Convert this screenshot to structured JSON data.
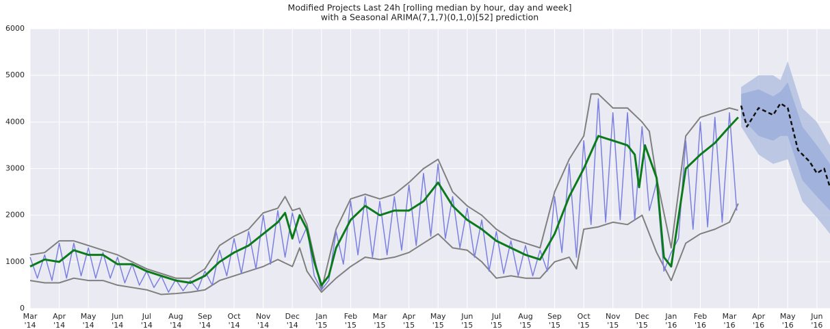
{
  "chart_data": {
    "type": "line",
    "title": "Modified Projects Last 24h [rolling median by hour, day and week]",
    "subtitle": "with a Seasonal ARIMA(7,1,7)(0,1,0)[52] prediction",
    "xlim": [
      0,
      27.45
    ],
    "ylim": [
      0,
      6000
    ],
    "yticks": [
      0,
      1000,
      2000,
      3000,
      4000,
      5000,
      6000
    ],
    "xticks": [
      {
        "value": 0,
        "label": "Mar\n'14"
      },
      {
        "value": 1,
        "label": "Apr\n'14"
      },
      {
        "value": 2,
        "label": "May\n'14"
      },
      {
        "value": 3,
        "label": "Jun\n'14"
      },
      {
        "value": 4,
        "label": "Jul\n'14"
      },
      {
        "value": 5,
        "label": "Aug\n'14"
      },
      {
        "value": 6,
        "label": "Sep\n'14"
      },
      {
        "value": 7,
        "label": "Oct\n'14"
      },
      {
        "value": 8,
        "label": "Nov\n'14"
      },
      {
        "value": 9,
        "label": "Dec\n'14"
      },
      {
        "value": 10,
        "label": "Jan\n'15"
      },
      {
        "value": 11,
        "label": "Feb\n'15"
      },
      {
        "value": 12,
        "label": "Mar\n'15"
      },
      {
        "value": 13,
        "label": "Apr\n'15"
      },
      {
        "value": 14,
        "label": "May\n'15"
      },
      {
        "value": 15,
        "label": "Jun\n'15"
      },
      {
        "value": 16,
        "label": "Jul\n'15"
      },
      {
        "value": 17,
        "label": "Aug\n'15"
      },
      {
        "value": 18,
        "label": "Sep\n'15"
      },
      {
        "value": 19,
        "label": "Oct\n'15"
      },
      {
        "value": 20,
        "label": "Nov\n'15"
      },
      {
        "value": 21,
        "label": "Dec\n'15"
      },
      {
        "value": 22,
        "label": "Jan\n'16"
      },
      {
        "value": 23,
        "label": "Feb\n'16"
      },
      {
        "value": 24,
        "label": "Mar\n'16"
      },
      {
        "value": 25,
        "label": "Apr\n'16"
      },
      {
        "value": 26,
        "label": "May\n'16"
      },
      {
        "value": 27,
        "label": "Jun\n'16"
      }
    ],
    "grid": true,
    "bands": [
      {
        "color": "#b4c1e2",
        "x": [
          24.4,
          25,
          25.5,
          25.75,
          26,
          26.5,
          27,
          27.45
        ],
        "upper": [
          4750,
          5000,
          5000,
          4900,
          5300,
          4300,
          4000,
          3500
        ],
        "lower": [
          3900,
          3300,
          3100,
          3150,
          3200,
          2300,
          1950,
          1600
        ]
      },
      {
        "color": "#9cafdb",
        "x": [
          24.4,
          25,
          25.5,
          25.75,
          26,
          26.5,
          27,
          27.45
        ],
        "upper": [
          4600,
          4700,
          4550,
          4650,
          4850,
          3900,
          3500,
          3100
        ],
        "lower": [
          4100,
          3700,
          3600,
          3700,
          3700,
          2750,
          2400,
          2100
        ]
      }
    ],
    "series": [
      {
        "color": "#7f7f7f",
        "width": 2,
        "x": [
          0,
          0.5,
          1,
          1.5,
          2,
          2.5,
          3,
          3.5,
          4,
          4.5,
          5,
          5.5,
          6,
          6.5,
          7,
          7.5,
          8,
          8.5,
          8.75,
          9,
          9.25,
          9.5,
          10,
          10.5,
          11,
          11.5,
          12,
          12.5,
          13,
          13.5,
          14,
          14.5,
          15,
          15.5,
          16,
          16.5,
          17,
          17.5,
          18,
          18.5,
          19,
          19.25,
          19.5,
          20,
          20.5,
          21,
          21.25,
          21.5,
          22,
          22.5,
          23,
          23.5,
          24,
          24.3
        ],
        "values": [
          1150,
          1200,
          1450,
          1450,
          1350,
          1250,
          1150,
          1000,
          850,
          750,
          650,
          650,
          850,
          1350,
          1550,
          1700,
          2050,
          2150,
          2400,
          2100,
          2150,
          1800,
          400,
          1700,
          2350,
          2450,
          2350,
          2450,
          2700,
          3000,
          3200,
          2500,
          2200,
          2000,
          1700,
          1500,
          1400,
          1300,
          2500,
          3200,
          3700,
          4600,
          4600,
          4300,
          4300,
          4000,
          3800,
          2800,
          1300,
          3700,
          4100,
          4200,
          4300,
          4250
        ]
      },
      {
        "color": "#7f7f7f",
        "width": 2,
        "x": [
          0,
          0.5,
          1,
          1.5,
          2,
          2.5,
          3,
          3.5,
          4,
          4.5,
          5,
          5.5,
          6,
          6.5,
          7,
          7.5,
          8,
          8.5,
          9,
          9.25,
          9.5,
          10,
          10.5,
          11,
          11.5,
          12,
          12.5,
          13,
          13.5,
          14,
          14.5,
          15,
          15.5,
          16,
          16.5,
          17,
          17.5,
          18,
          18.5,
          18.75,
          19,
          19.5,
          20,
          20.5,
          21,
          21.5,
          22,
          22.5,
          23,
          23.5,
          24,
          24.3
        ],
        "values": [
          600,
          550,
          550,
          650,
          600,
          600,
          500,
          450,
          400,
          300,
          320,
          350,
          400,
          600,
          700,
          800,
          900,
          1050,
          900,
          1300,
          800,
          350,
          650,
          900,
          1100,
          1050,
          1100,
          1200,
          1400,
          1600,
          1300,
          1250,
          1000,
          650,
          700,
          650,
          650,
          1000,
          1100,
          850,
          1700,
          1750,
          1850,
          1800,
          2000,
          1200,
          600,
          1400,
          1600,
          1700,
          1850,
          2250
        ]
      },
      {
        "color": "#7b7fe0",
        "width": 1.5,
        "x": [
          0,
          0.25,
          0.5,
          0.75,
          1,
          1.25,
          1.5,
          1.75,
          2,
          2.25,
          2.5,
          2.75,
          3,
          3.25,
          3.5,
          3.75,
          4,
          4.25,
          4.5,
          4.75,
          5,
          5.25,
          5.5,
          5.75,
          6,
          6.25,
          6.5,
          6.75,
          7,
          7.25,
          7.5,
          7.75,
          8,
          8.25,
          8.5,
          8.75,
          9,
          9.25,
          9.5,
          9.75,
          10,
          10.25,
          10.5,
          10.75,
          11,
          11.25,
          11.5,
          11.75,
          12,
          12.25,
          12.5,
          12.75,
          13,
          13.25,
          13.5,
          13.75,
          14,
          14.25,
          14.5,
          14.75,
          15,
          15.25,
          15.5,
          15.75,
          16,
          16.25,
          16.5,
          16.75,
          17,
          17.25,
          17.5,
          17.75,
          18,
          18.25,
          18.5,
          18.75,
          19,
          19.25,
          19.5,
          19.75,
          20,
          20.25,
          20.5,
          20.75,
          21,
          21.25,
          21.5,
          21.75,
          22,
          22.25,
          22.5,
          22.75,
          23,
          23.25,
          23.5,
          23.75,
          24,
          24.25
        ],
        "values": [
          1100,
          650,
          1150,
          600,
          1400,
          650,
          1400,
          700,
          1300,
          650,
          1200,
          650,
          1100,
          550,
          950,
          500,
          800,
          450,
          700,
          350,
          620,
          380,
          600,
          400,
          800,
          500,
          1250,
          700,
          1500,
          750,
          1650,
          850,
          2000,
          950,
          2100,
          1100,
          2050,
          1400,
          1750,
          700,
          400,
          600,
          1650,
          950,
          2300,
          1150,
          2400,
          1100,
          2300,
          1150,
          2400,
          1250,
          2650,
          1350,
          2900,
          1550,
          3100,
          1500,
          2400,
          1300,
          2150,
          1100,
          1900,
          800,
          1650,
          750,
          1450,
          700,
          1350,
          700,
          1250,
          800,
          2400,
          1200,
          3100,
          1100,
          3600,
          1800,
          4500,
          1850,
          4200,
          1900,
          4200,
          1900,
          3900,
          2100,
          2700,
          800,
          1200,
          1500,
          3600,
          1700,
          4000,
          1750,
          4100,
          1850,
          4200,
          2100
        ]
      },
      {
        "color": "#0b7a1b",
        "width": 3,
        "x": [
          0,
          0.5,
          1,
          1.5,
          2,
          2.5,
          3,
          3.5,
          4,
          4.5,
          5,
          5.5,
          6,
          6.5,
          7,
          7.5,
          8,
          8.5,
          8.75,
          9,
          9.25,
          9.5,
          9.75,
          10,
          10.25,
          10.5,
          11,
          11.5,
          12,
          12.5,
          13,
          13.5,
          14,
          14.5,
          15,
          15.5,
          16,
          16.5,
          17,
          17.5,
          18,
          18.5,
          19,
          19.5,
          20,
          20.5,
          20.75,
          20.9,
          21.1,
          21.5,
          21.75,
          22,
          22.5,
          23,
          23.5,
          24,
          24.3
        ],
        "values": [
          900,
          1050,
          1000,
          1250,
          1150,
          1150,
          950,
          950,
          800,
          700,
          600,
          550,
          700,
          1000,
          1200,
          1350,
          1600,
          1850,
          2050,
          1500,
          2000,
          1700,
          1000,
          500,
          700,
          1300,
          1900,
          2200,
          2000,
          2100,
          2100,
          2300,
          2700,
          2200,
          1900,
          1700,
          1450,
          1300,
          1150,
          1050,
          1600,
          2400,
          3000,
          3700,
          3600,
          3500,
          3300,
          2600,
          3500,
          2800,
          1100,
          900,
          3000,
          3300,
          3550,
          3900,
          4100
        ]
      },
      {
        "color": "#111111",
        "width": 2.5,
        "dashed": true,
        "x": [
          24.4,
          24.6,
          25,
          25.5,
          25.75,
          26,
          26.35,
          26.75,
          27,
          27.25,
          27.45
        ],
        "values": [
          4350,
          3900,
          4300,
          4150,
          4400,
          4300,
          3400,
          3150,
          2900,
          3000,
          2600
        ]
      }
    ]
  }
}
